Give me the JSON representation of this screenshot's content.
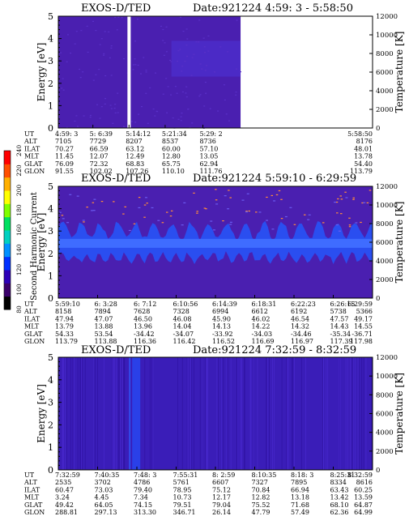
{
  "colors": {
    "background_fill": "#4a1fb0",
    "energy_band": "#2a4ef0",
    "speckle": "#ff8c3a",
    "bright_line": "#8fb0ff"
  },
  "colorbar": {
    "label": "Second Harmonic Current",
    "ticks": [
      "80",
      "100",
      "120",
      "140",
      "160",
      "180",
      "200",
      "220",
      "240"
    ],
    "stops": [
      "#000000",
      "#3a006a",
      "#2d00b8",
      "#0030ff",
      "#0090ff",
      "#00d0c0",
      "#00e060",
      "#80ff00",
      "#ffff00",
      "#ffb000",
      "#ff5000",
      "#ff0000"
    ]
  },
  "panels": [
    {
      "title": "EXOS-D/TED",
      "date": "Date:921224  4:59: 3 - 5:58:50",
      "ylabel_left": "Energy [eV]",
      "ylabel_right": "Temperature [K]",
      "y_ticks": [
        "0",
        "1",
        "2",
        "3",
        "4",
        "5"
      ],
      "t_ticks": [
        "0",
        "2000",
        "4000",
        "6000",
        "8000",
        "10000",
        "12000"
      ],
      "data_end_fraction": 0.58,
      "gap_fraction": 0.22,
      "table": {
        "labels": [
          "UT",
          "ALT",
          "ILAT",
          "MLT",
          "GLAT",
          "GLON"
        ],
        "columns": [
          [
            "4:59: 3",
            "7105",
            "70.27",
            "11.45",
            "76.09",
            "91.55"
          ],
          [
            "5: 6:39",
            "7729",
            "66.59",
            "12.07",
            "72.32",
            "102.02"
          ],
          [
            "5:14:12",
            "8207",
            "63.12",
            "12.49",
            "68.83",
            "107.26"
          ],
          [
            "5:21:34",
            "8537",
            "60.00",
            "12.80",
            "65.75",
            "110.10"
          ],
          [
            "5:29: 2",
            "8736",
            "57.10",
            "13.05",
            "62.94",
            "111.76"
          ],
          [
            "5:58:50",
            "8176",
            "48.01",
            "13.78",
            "54.40",
            "113.79"
          ]
        ]
      }
    },
    {
      "title": "EXOS-D/TED",
      "date": "Date:921224  5:59:10 - 6:29:59",
      "ylabel_left": "Energy [eV]",
      "ylabel_right": "Temperature [K]",
      "y_ticks": [
        "0",
        "1",
        "2",
        "3",
        "4",
        "5"
      ],
      "t_ticks": [
        "0",
        "2000",
        "4000",
        "6000",
        "8000",
        "10000",
        "12000"
      ],
      "table": {
        "labels": [
          "UT",
          "ALT",
          "ILAT",
          "MLT",
          "GLAT",
          "GLON"
        ],
        "columns": [
          [
            "5:59:10",
            "8158",
            "47.94",
            "13.79",
            "54.33",
            "113.79"
          ],
          [
            "6: 3:28",
            "7894",
            "47.07",
            "13.88",
            "53.54",
            "113.88"
          ],
          [
            "6: 7:12",
            "7628",
            "46.50",
            "13.96",
            "-34.42",
            "116.36"
          ],
          [
            "6:10:56",
            "7328",
            "46.08",
            "14.04",
            "-34.07",
            "116.42"
          ],
          [
            "6:14:39",
            "6994",
            "45.90",
            "14.13",
            "-33.92",
            "116.52"
          ],
          [
            "6:18:31",
            "6612",
            "46.02",
            "14.22",
            "-34.03",
            "116.69"
          ],
          [
            "6:22:23",
            "6192",
            "46.54",
            "14.32",
            "-34.46",
            "116.97"
          ],
          [
            "6:26:15",
            "5738",
            "47.57",
            "14.43",
            "-35.34",
            "117.39"
          ],
          [
            "6:29:59",
            "5366",
            "49.17",
            "14.55",
            "-36.71",
            "117.98"
          ]
        ]
      }
    },
    {
      "title": "EXOS-D/TED",
      "date": "Date:921224  7:32:59 - 8:32:59",
      "ylabel_left": "Energy [eV]",
      "ylabel_right": "Temperature [K]",
      "y_ticks": [
        "0",
        "1",
        "2",
        "3",
        "4",
        "5"
      ],
      "t_ticks": [
        "0",
        "2000",
        "4000",
        "6000",
        "8000",
        "10000",
        "12000"
      ],
      "table": {
        "labels": [
          "UT",
          "ALT",
          "ILAT",
          "MLT",
          "GLAT",
          "GLON"
        ],
        "columns": [
          [
            "7:32:59",
            "2535",
            "60.47",
            "3.24",
            "49.42",
            "288.81"
          ],
          [
            "7:40:35",
            "3702",
            "73.03",
            "4.45",
            "64.05",
            "297.13"
          ],
          [
            "7:48: 3",
            "4786",
            "79.40",
            "7.34",
            "74.15",
            "313.30"
          ],
          [
            "7:55:31",
            "5761",
            "78.95",
            "10.73",
            "79.51",
            "346.71"
          ],
          [
            "8: 2:59",
            "6607",
            "75.12",
            "12.17",
            "79.04",
            "26.14"
          ],
          [
            "8:10:35",
            "7327",
            "70.84",
            "12.82",
            "75.52",
            "47.79"
          ],
          [
            "8:18: 3",
            "7895",
            "66.94",
            "13.18",
            "71.68",
            "57.49"
          ],
          [
            "8:25:31",
            "8334",
            "63.43",
            "13.42",
            "68.10",
            "62.36"
          ],
          [
            "8:32:59",
            "8616",
            "60.25",
            "13.59",
            "64.87",
            "64.99"
          ]
        ]
      }
    }
  ],
  "chart_data": [
    {
      "type": "heatmap",
      "title": "EXOS-D/TED  Date:921224  4:59: 3 - 5:58:50",
      "xlabel": "UT",
      "ylabel": "Energy [eV]",
      "y2label": "Temperature [K]",
      "x_ticks": [
        "4:59: 3",
        "5: 6:39",
        "5:14:12",
        "5:21:34",
        "5:29: 2",
        "5:58:50"
      ],
      "ylim": [
        0,
        5
      ],
      "y2lim": [
        0,
        12000
      ]
    },
    {
      "type": "heatmap",
      "title": "EXOS-D/TED  Date:921224  5:59:10 - 6:29:59",
      "xlabel": "UT",
      "ylabel": "Energy [eV]",
      "y2label": "Temperature [K]",
      "x_ticks": [
        "5:59:10",
        "6: 3:28",
        "6: 7:12",
        "6:10:56",
        "6:14:39",
        "6:18:31",
        "6:22:23",
        "6:26:15",
        "6:29:59"
      ],
      "ylim": [
        0,
        5
      ],
      "y2lim": [
        0,
        12000
      ],
      "colorbar_label": "Second Harmonic Current",
      "colorbar_range": [
        80,
        240
      ]
    },
    {
      "type": "heatmap",
      "title": "EXOS-D/TED  Date:921224  7:32:59 - 8:32:59",
      "xlabel": "UT",
      "ylabel": "Energy [eV]",
      "y2label": "Temperature [K]",
      "x_ticks": [
        "7:32:59",
        "7:40:35",
        "7:48: 3",
        "7:55:31",
        "8: 2:59",
        "8:10:35",
        "8:18: 3",
        "8:25:31",
        "8:32:59"
      ],
      "ylim": [
        0,
        5
      ],
      "y2lim": [
        0,
        12000
      ]
    }
  ]
}
